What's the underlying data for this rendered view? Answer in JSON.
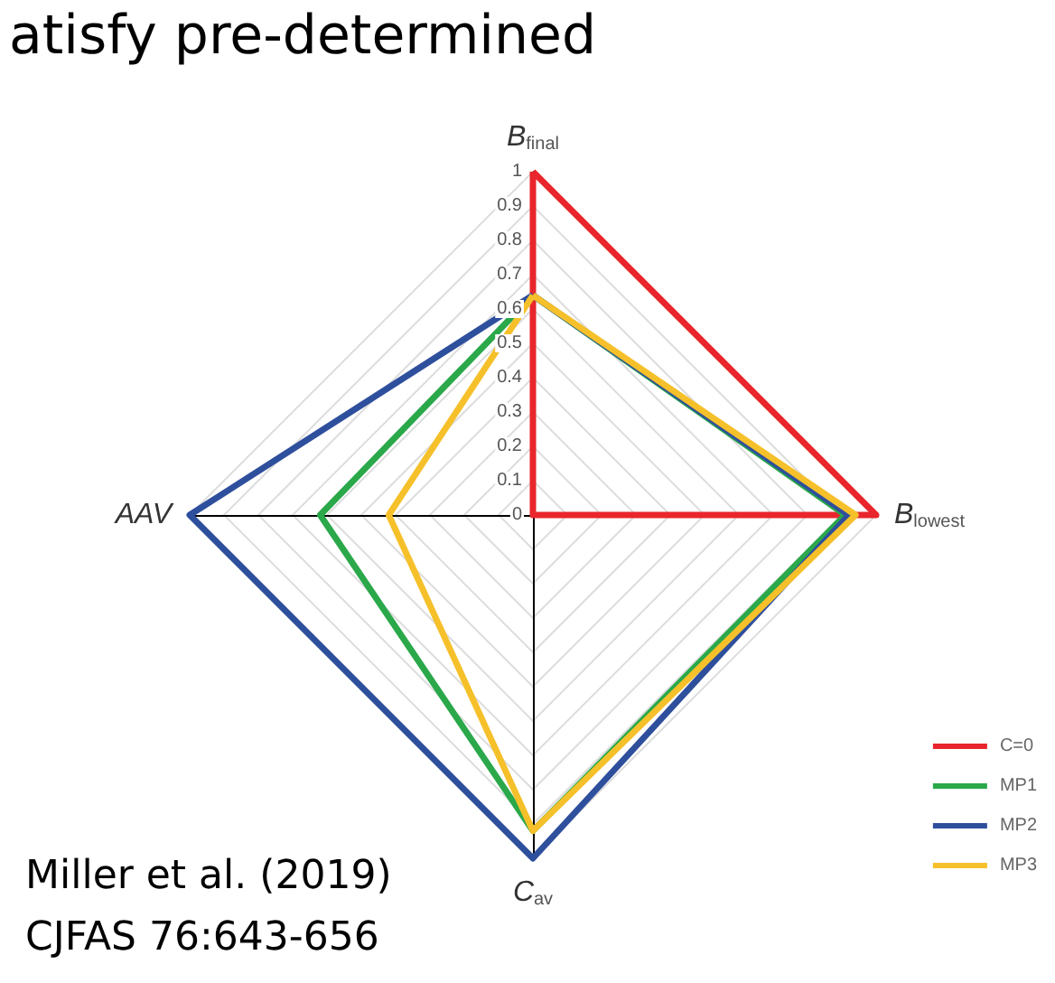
{
  "chart_data": {
    "type": "radar",
    "title": "atisfy pre-determined",
    "categories": [
      "B$_{final}$",
      "B$_{lowest}$",
      "C$_{av}$",
      "AAV"
    ],
    "series": [
      {
        "name": "C=0",
        "color": "#e8262b",
        "values": [
          1,
          1,
          0,
          0
        ]
      },
      {
        "name": "MP1",
        "color": "#2aa84a",
        "values": [
          0.64,
          0.91,
          0.92,
          0.62
        ]
      },
      {
        "name": "MP2",
        "color": "#2e4f9c",
        "values": [
          0.64,
          0.92,
          1,
          1
        ]
      },
      {
        "name": "MP3",
        "color": "#f5c02a",
        "values": [
          0.64,
          0.94,
          0.92,
          0.42
        ]
      }
    ],
    "ylim": [
      0,
      1
    ],
    "yticks": [
      0,
      0.1,
      0.2,
      0.3,
      0.4,
      0.5,
      0.6,
      0.7,
      0.8,
      0.9,
      1
    ],
    "grid": true,
    "legend": "bottom right",
    "marker": "none",
    "line_style": "solid",
    "annotations": [
      "Miller et al. (2019)",
      "CJFAS 76:643-656"
    ]
  }
}
